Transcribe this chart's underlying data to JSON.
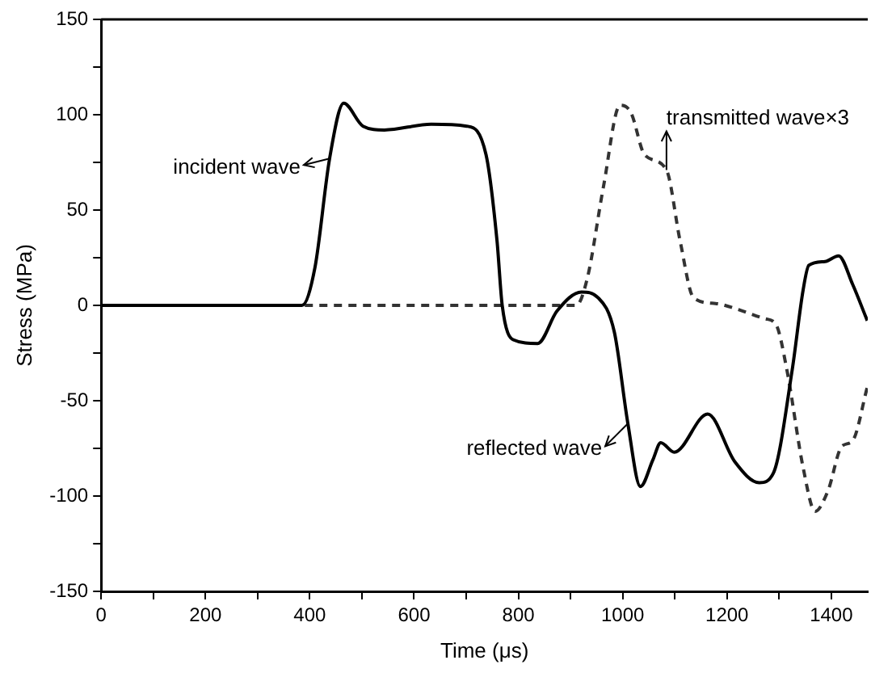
{
  "chart_data": {
    "type": "line",
    "xlabel": "Time (μs)",
    "ylabel": "Stress (MPa)",
    "xlim": [
      0,
      1470
    ],
    "xticks": [
      0,
      {
        "value": 100,
        "label": null
      },
      200,
      {
        "value": 300,
        "label": null
      },
      400,
      {
        "value": 500,
        "label": null
      },
      600,
      {
        "value": 700,
        "label": null
      },
      800,
      {
        "value": 900,
        "label": null
      },
      1000,
      {
        "value": 1100,
        "label": null
      },
      1200,
      {
        "value": 1300,
        "label": null
      },
      1400
    ],
    "ylim": [
      -150,
      150
    ],
    "yticks": [
      -150,
      {
        "value": -125,
        "label": null
      },
      -100,
      {
        "value": -75,
        "label": null
      },
      -50,
      {
        "value": -25,
        "label": null
      },
      0,
      {
        "value": 25,
        "label": null
      },
      50,
      {
        "value": 75,
        "label": null
      },
      100,
      {
        "value": 125,
        "label": null
      },
      150
    ],
    "grid": false,
    "legend": false,
    "marker": "none",
    "series": [
      {
        "color": "#000000",
        "line_style": "solid",
        "x": [
          0,
          385,
          410,
          438,
          465,
          502,
          543,
          633,
          701,
          738,
          759,
          769,
          790,
          837,
          874,
          921,
          953,
          984,
          1010,
          1034,
          1058,
          1073,
          1099,
          1163,
          1215,
          1262,
          1289,
          1325,
          1346,
          1357,
          1388,
          1414,
          1441,
          1469
        ],
        "values": [
          0,
          0,
          20,
          77,
          106,
          94,
          92,
          95,
          94,
          79,
          34,
          0,
          -18,
          -20,
          -3,
          7,
          4,
          -14,
          -62,
          -95,
          -81,
          -72,
          -77,
          -57,
          -82,
          -93,
          -88,
          -34,
          8,
          21,
          23,
          26,
          11,
          -8
        ]
      },
      {
        "color": "#333333",
        "line_style": "dashed",
        "x": [
          0,
          911,
          932,
          963,
          995,
          1016,
          1042,
          1084,
          1110,
          1136,
          1178,
          1220,
          1273,
          1294,
          1315,
          1346,
          1369,
          1394,
          1420,
          1441,
          1469
        ],
        "values": [
          0,
          0,
          14,
          62,
          105,
          101,
          79,
          71,
          34,
          4,
          1,
          -2,
          -7,
          -10,
          -34,
          -85,
          -108,
          -97,
          -74,
          -71,
          -43
        ]
      }
    ],
    "annotations": [
      {
        "text": "incident wave",
        "x": 438,
        "y": 77
      },
      {
        "text": "transmitted wave×3",
        "x": 1084,
        "y": 71
      },
      {
        "text": "reflected wave",
        "x": 1010,
        "y": -62
      }
    ]
  }
}
